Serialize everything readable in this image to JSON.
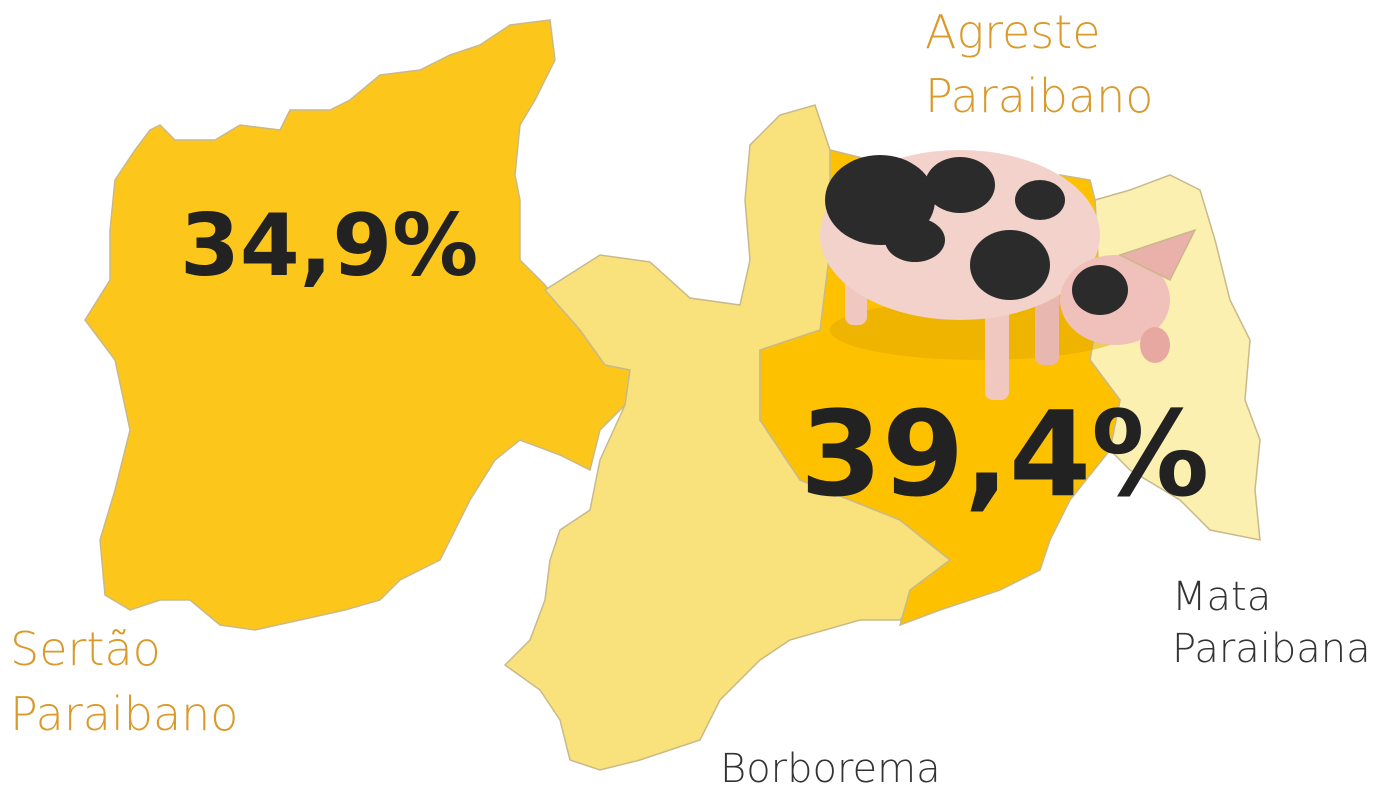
{
  "regions": [
    {
      "label_lines": [
        "Sertão",
        "Paraibano"
      ],
      "share": "34,9%"
    },
    {
      "label_lines": [
        "Agreste",
        "Paraibano"
      ],
      "share": "39,4%"
    },
    {
      "label_lines": [
        "Borborema"
      ]
    },
    {
      "label_lines": [
        "Mata",
        "Paraibana"
      ]
    }
  ]
}
